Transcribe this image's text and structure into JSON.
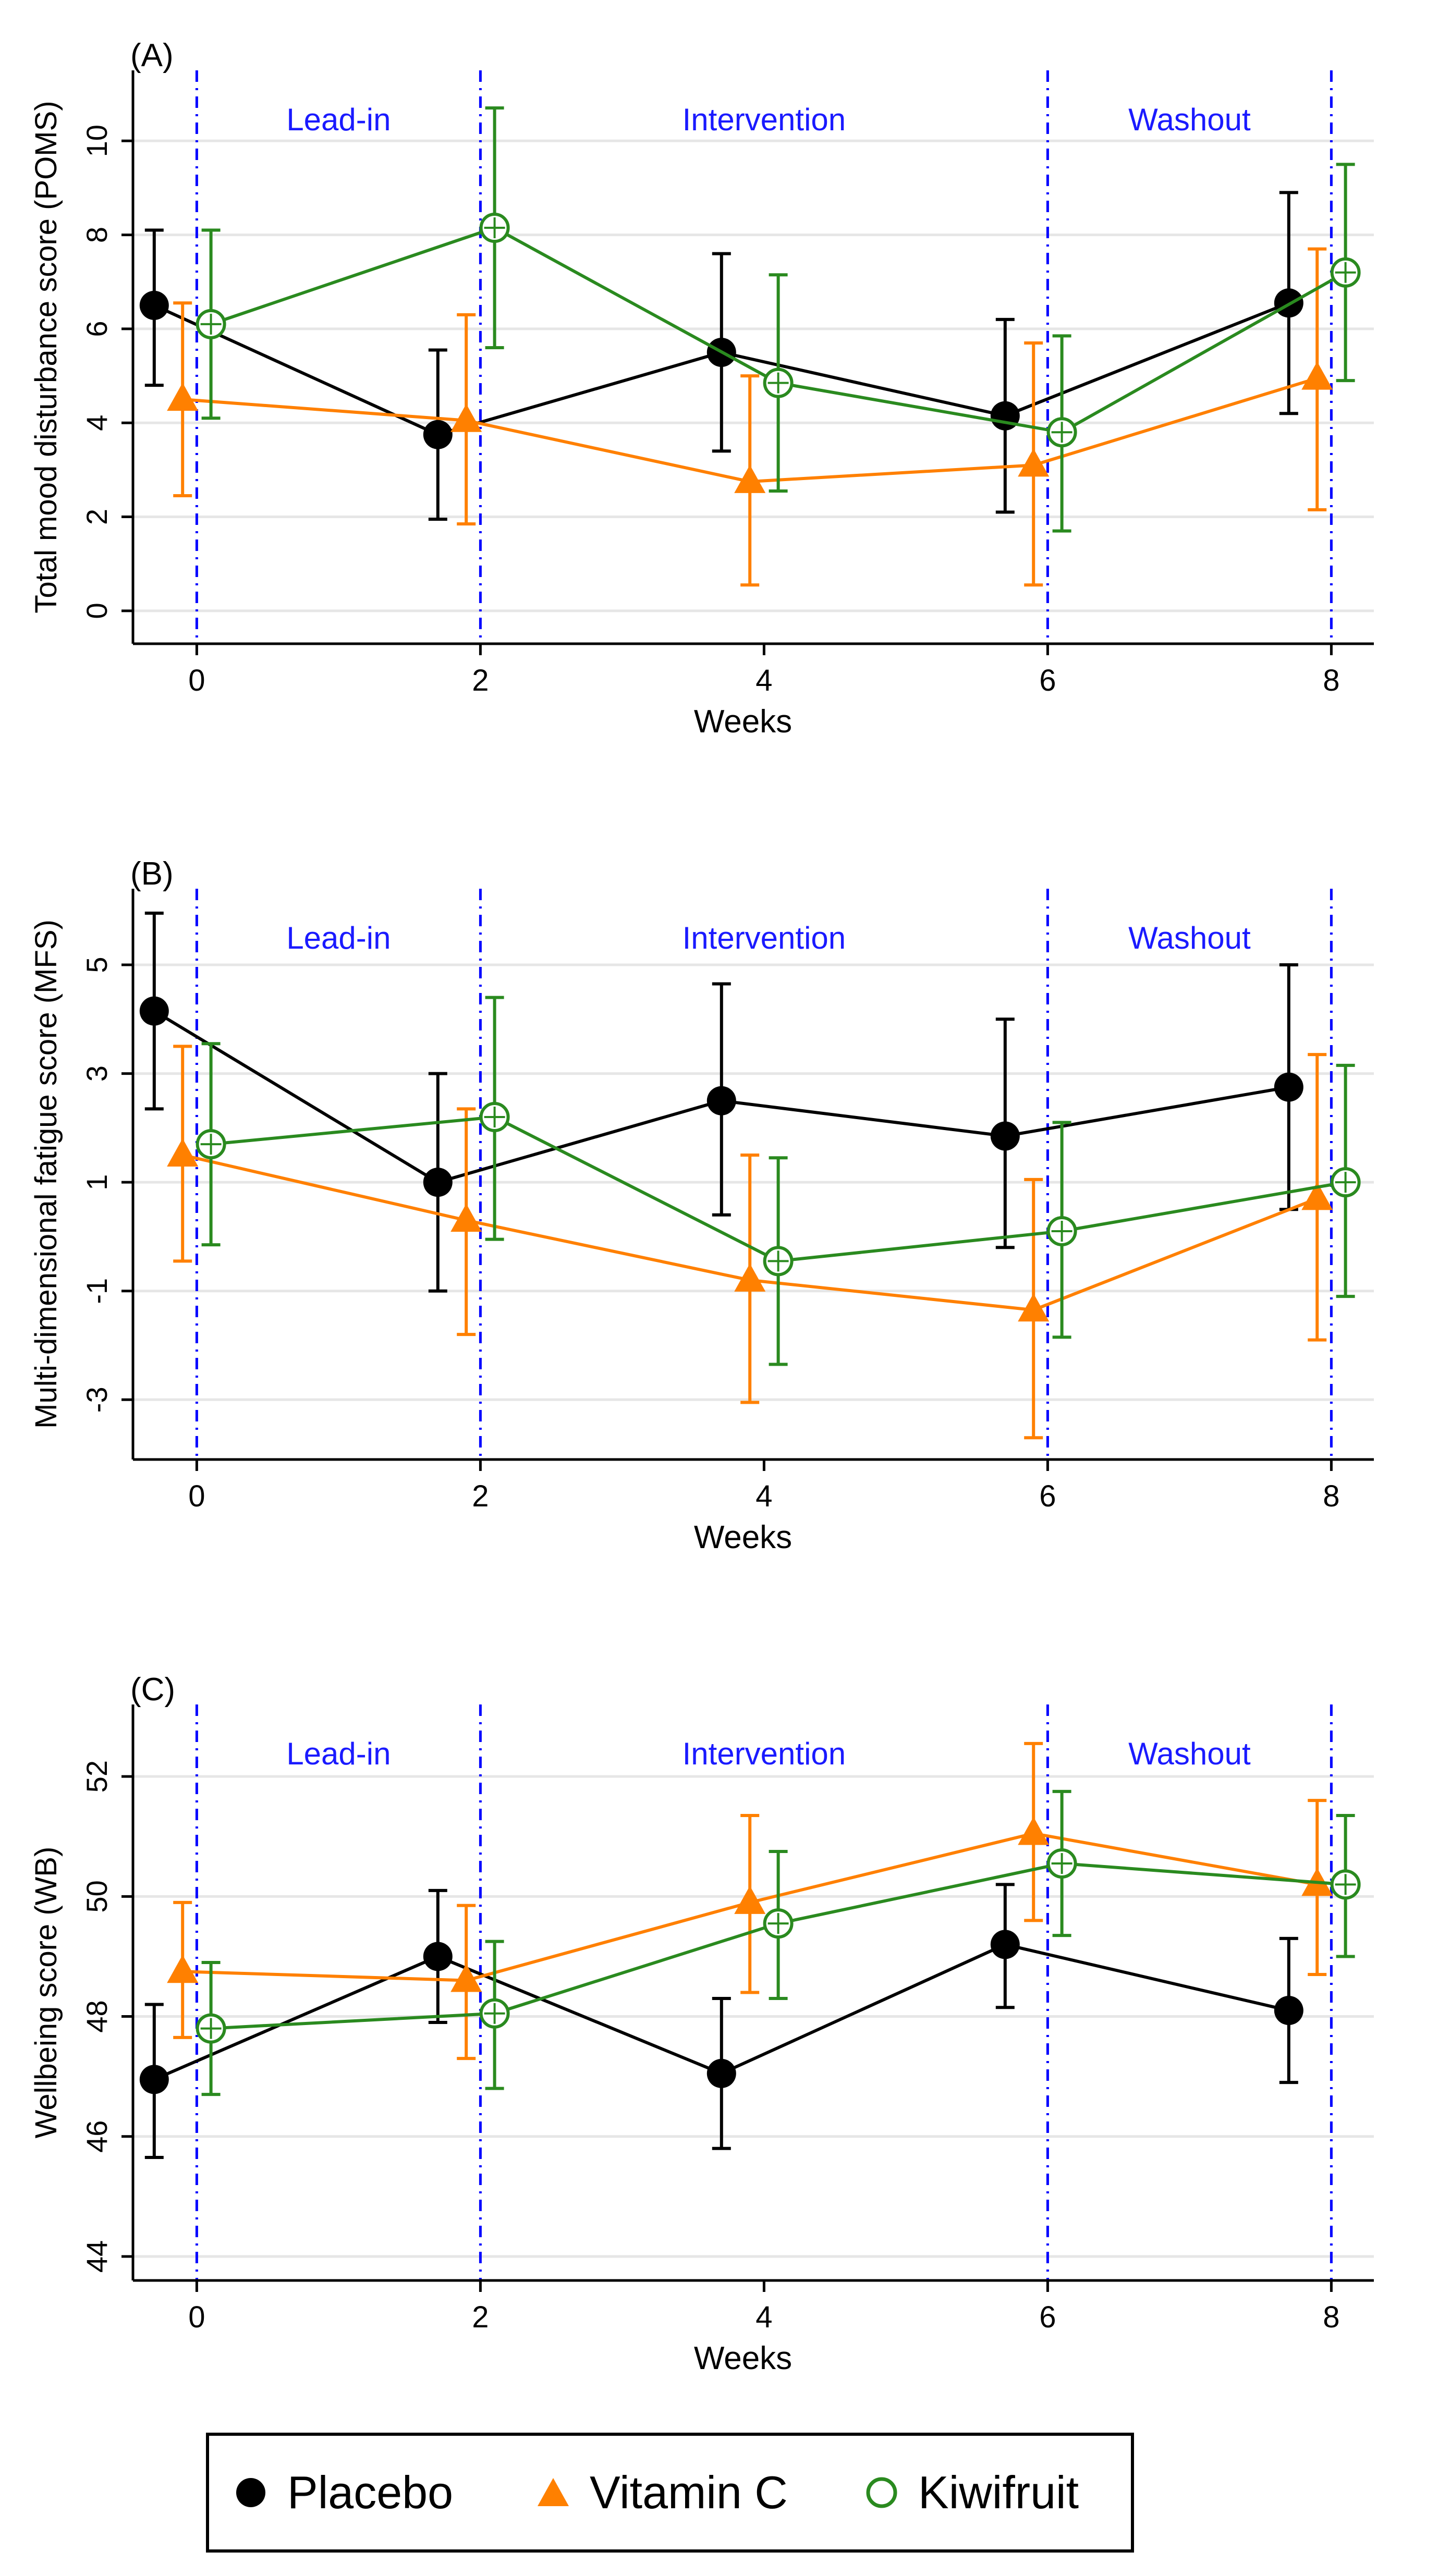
{
  "colors": {
    "placebo": "#000000",
    "vitamin_c": "#ff8000",
    "kiwifruit": "#2a8a1f",
    "phase_line": "#0000ff",
    "phase_text": "#1a1aff",
    "grid": "#e6e6e6"
  },
  "legend": {
    "placebo": "Placebo",
    "vitamin_c": "Vitamin C",
    "kiwifruit": "Kiwifruit"
  },
  "chart_data": [
    {
      "panel_label": "(A)",
      "type": "line",
      "title": "",
      "xlabel": "Weeks",
      "ylabel": "Total mood disturbance score (POMS)",
      "xlim": [
        -0.45,
        8.3
      ],
      "ylim": [
        -0.7,
        11.5
      ],
      "xticks": [
        0,
        2,
        4,
        6,
        8
      ],
      "yticks": [
        0,
        2,
        4,
        6,
        8,
        10
      ],
      "ytick_labels": [
        "0",
        "2",
        "4",
        "6",
        "8",
        "10"
      ],
      "phases": [
        {
          "label": "Lead-in",
          "x_center": 1.0
        },
        {
          "label": "Intervention",
          "x_center": 4.0
        },
        {
          "label": "Washout",
          "x_center": 7.0
        }
      ],
      "phase_lines": [
        0,
        2,
        6,
        8
      ],
      "series": [
        {
          "name": "Placebo",
          "key": "placebo",
          "marker": "filled-circle",
          "x": [
            -0.3,
            1.7,
            3.7,
            5.7,
            7.7
          ],
          "y": [
            6.5,
            3.75,
            5.5,
            4.15,
            6.55
          ],
          "lower": [
            4.8,
            1.95,
            3.4,
            2.1,
            4.2
          ],
          "upper": [
            8.1,
            5.55,
            7.6,
            6.2,
            8.9
          ]
        },
        {
          "name": "Vitamin C",
          "key": "vitamin_c",
          "marker": "filled-triangle",
          "x": [
            -0.1,
            1.9,
            3.9,
            5.9,
            7.9
          ],
          "y": [
            4.5,
            4.05,
            2.75,
            3.1,
            4.95
          ],
          "lower": [
            2.45,
            1.85,
            0.55,
            0.55,
            2.15
          ],
          "upper": [
            6.55,
            6.3,
            5.0,
            5.7,
            7.7
          ]
        },
        {
          "name": "Kiwifruit",
          "key": "kiwifruit",
          "marker": "hollow-circle",
          "x": [
            0.1,
            2.1,
            4.1,
            6.1,
            8.1
          ],
          "y": [
            6.1,
            8.15,
            4.85,
            3.8,
            7.2
          ],
          "lower": [
            4.1,
            5.6,
            2.55,
            1.7,
            4.9
          ],
          "upper": [
            8.1,
            10.7,
            7.15,
            5.85,
            9.5
          ]
        }
      ]
    },
    {
      "panel_label": "(B)",
      "type": "line",
      "title": "",
      "xlabel": "Weeks",
      "ylabel": "Multi-dimensional fatigue score (MFS)",
      "xlim": [
        -0.45,
        8.3
      ],
      "ylim": [
        -4.1,
        6.4
      ],
      "xticks": [
        0,
        2,
        4,
        6,
        8
      ],
      "yticks": [
        -3,
        -1,
        1,
        3,
        5
      ],
      "ytick_labels": [
        "-3",
        "-1",
        "1",
        "3",
        "5"
      ],
      "phases": [
        {
          "label": "Lead-in",
          "x_center": 1.0
        },
        {
          "label": "Intervention",
          "x_center": 4.0
        },
        {
          "label": "Washout",
          "x_center": 7.0
        }
      ],
      "phase_lines": [
        0,
        2,
        6,
        8
      ],
      "series": [
        {
          "name": "Placebo",
          "key": "placebo",
          "marker": "filled-circle",
          "x": [
            -0.3,
            1.7,
            3.7,
            5.7,
            7.7
          ],
          "y": [
            4.15,
            1.0,
            2.5,
            1.85,
            2.75
          ],
          "lower": [
            2.35,
            -1.0,
            0.4,
            -0.2,
            0.5
          ],
          "upper": [
            5.95,
            3.0,
            4.65,
            4.0,
            5.0
          ]
        },
        {
          "name": "Vitamin C",
          "key": "vitamin_c",
          "marker": "filled-triangle",
          "x": [
            -0.1,
            1.9,
            3.9,
            5.9,
            7.9
          ],
          "y": [
            1.5,
            0.3,
            -0.8,
            -1.35,
            0.7
          ],
          "lower": [
            -0.45,
            -1.8,
            -3.05,
            -3.7,
            -1.9
          ],
          "upper": [
            3.5,
            2.35,
            1.5,
            1.05,
            3.35
          ]
        },
        {
          "name": "Kiwifruit",
          "key": "kiwifruit",
          "marker": "hollow-circle",
          "x": [
            0.1,
            2.1,
            4.1,
            6.1,
            8.1
          ],
          "y": [
            1.7,
            2.2,
            -0.45,
            0.1,
            1.0
          ],
          "lower": [
            -0.15,
            -0.05,
            -2.35,
            -1.85,
            -1.1
          ],
          "upper": [
            3.55,
            4.4,
            1.45,
            2.1,
            3.15
          ]
        }
      ]
    },
    {
      "panel_label": "(C)",
      "type": "line",
      "title": "",
      "xlabel": "Weeks",
      "ylabel": "Wellbeing score (WB)",
      "xlim": [
        -0.45,
        8.3
      ],
      "ylim": [
        43.6,
        53.2
      ],
      "xticks": [
        0,
        2,
        4,
        6,
        8
      ],
      "yticks": [
        44,
        46,
        48,
        50,
        52
      ],
      "ytick_labels": [
        "44",
        "46",
        "48",
        "50",
        "52"
      ],
      "phases": [
        {
          "label": "Lead-in",
          "x_center": 1.0
        },
        {
          "label": "Intervention",
          "x_center": 4.0
        },
        {
          "label": "Washout",
          "x_center": 7.0
        }
      ],
      "phase_lines": [
        0,
        2,
        6,
        8
      ],
      "series": [
        {
          "name": "Placebo",
          "key": "placebo",
          "marker": "filled-circle",
          "x": [
            -0.3,
            1.7,
            3.7,
            5.7,
            7.7
          ],
          "y": [
            46.95,
            49.0,
            47.05,
            49.2,
            48.1
          ],
          "lower": [
            45.65,
            47.9,
            45.8,
            48.15,
            46.9
          ],
          "upper": [
            48.2,
            50.1,
            48.3,
            50.2,
            49.3
          ]
        },
        {
          "name": "Vitamin C",
          "key": "vitamin_c",
          "marker": "filled-triangle",
          "x": [
            -0.1,
            1.9,
            3.9,
            5.9,
            7.9
          ],
          "y": [
            48.75,
            48.6,
            49.9,
            51.05,
            50.2
          ],
          "lower": [
            47.65,
            47.3,
            48.4,
            49.6,
            48.7
          ],
          "upper": [
            49.9,
            49.85,
            51.35,
            52.55,
            51.6
          ]
        },
        {
          "name": "Kiwifruit",
          "key": "kiwifruit",
          "marker": "hollow-circle",
          "x": [
            0.1,
            2.1,
            4.1,
            6.1,
            8.1
          ],
          "y": [
            47.8,
            48.05,
            49.55,
            50.55,
            50.2
          ],
          "lower": [
            46.7,
            46.8,
            48.3,
            49.35,
            49.0
          ],
          "upper": [
            48.9,
            49.25,
            50.75,
            51.75,
            51.35
          ]
        }
      ]
    }
  ]
}
